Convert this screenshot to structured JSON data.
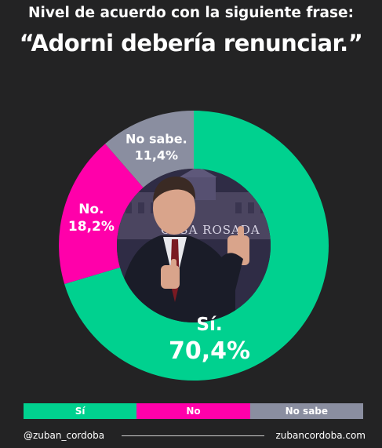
{
  "header": {
    "title": "Nivel de acuerdo con la siguiente frase:",
    "subtitle": "“Adorni debería renunciar.”"
  },
  "chart_data": {
    "type": "pie",
    "style": "donut",
    "slices": [
      {
        "name": "Sí",
        "label_text": "Sí.",
        "value": 70.4,
        "value_text": "70,4%",
        "color": "#00d18f"
      },
      {
        "name": "No",
        "label_text": "No.",
        "value": 18.2,
        "value_text": "18,2%",
        "color": "#ff00aa"
      },
      {
        "name": "No sabe",
        "label_text": "No sabe.",
        "value": 11.4,
        "value_text": "11,4%",
        "color": "#8a8ea0"
      }
    ],
    "legend": [
      "Sí",
      "No",
      "No sabe"
    ],
    "legend_position": "bottom"
  },
  "footer": {
    "handle": "@zuban_cordoba",
    "website": "zubancordoba.com"
  },
  "photo": {
    "background_sign": "CASA ROSADA",
    "colors": {
      "sky": "#2f2c45",
      "building": "#4b4560",
      "suit": "#1a1c28",
      "skin": "#d9a48b",
      "tie": "#7a1a22",
      "shirt": "#e8e8ec"
    }
  }
}
